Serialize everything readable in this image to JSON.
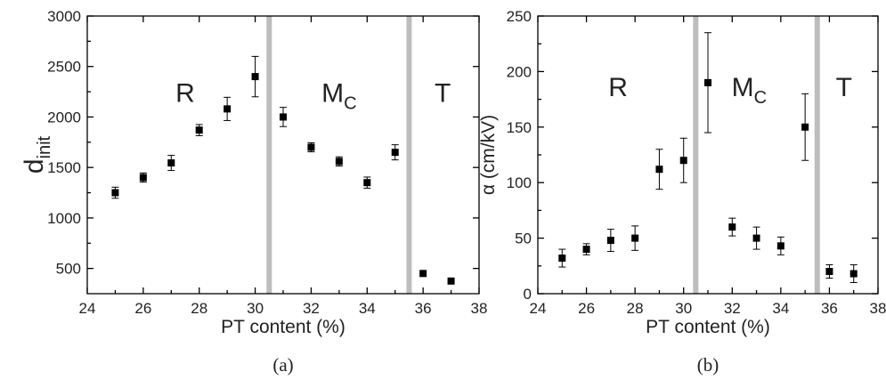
{
  "chart_data": [
    {
      "type": "scatter",
      "xlabel": "PT content (%)",
      "ylabel": "d",
      "ylabel_sub": "init",
      "xlim": [
        24,
        38
      ],
      "ylim": [
        250,
        3000
      ],
      "xticks": [
        24,
        26,
        28,
        30,
        32,
        34,
        36,
        38
      ],
      "yticks": [
        500,
        1000,
        1500,
        2000,
        2500,
        3000
      ],
      "boundaries": [
        30.5,
        35.5
      ],
      "regions": [
        {
          "label": "R",
          "sub": "",
          "x": 27.5,
          "y": 2150
        },
        {
          "label": "M",
          "sub": "C",
          "x": 33.0,
          "y": 2150
        },
        {
          "label": "T",
          "sub": "",
          "x": 36.7,
          "y": 2150
        }
      ],
      "points": [
        {
          "x": 25,
          "y": 1250,
          "err": 55
        },
        {
          "x": 26,
          "y": 1400,
          "err": 45
        },
        {
          "x": 27,
          "y": 1545,
          "err": 75
        },
        {
          "x": 28,
          "y": 1870,
          "err": 55
        },
        {
          "x": 29,
          "y": 2080,
          "err": 115
        },
        {
          "x": 30,
          "y": 2400,
          "err": 200
        },
        {
          "x": 31,
          "y": 2000,
          "err": 95
        },
        {
          "x": 32,
          "y": 1700,
          "err": 45
        },
        {
          "x": 33,
          "y": 1560,
          "err": 45
        },
        {
          "x": 34,
          "y": 1350,
          "err": 55
        },
        {
          "x": 35,
          "y": 1650,
          "err": 75
        },
        {
          "x": 36,
          "y": 450,
          "err": 0
        },
        {
          "x": 37,
          "y": 375,
          "err": 0
        }
      ],
      "caption": "(a)"
    },
    {
      "type": "scatter",
      "xlabel": "PT content (%)",
      "ylabel": "α (cm/kV)",
      "ylabel_sub": "",
      "xlim": [
        24,
        38
      ],
      "ylim": [
        0,
        250
      ],
      "xticks": [
        24,
        26,
        28,
        30,
        32,
        34,
        36,
        38
      ],
      "yticks": [
        0,
        50,
        100,
        150,
        200,
        250
      ],
      "boundaries": [
        30.5,
        35.5
      ],
      "regions": [
        {
          "label": "R",
          "sub": "",
          "x": 27.3,
          "y": 178
        },
        {
          "label": "M",
          "sub": "C",
          "x": 32.7,
          "y": 178
        },
        {
          "label": "T",
          "sub": "",
          "x": 36.6,
          "y": 178
        }
      ],
      "points": [
        {
          "x": 25,
          "y": 32,
          "err": 8
        },
        {
          "x": 26,
          "y": 40,
          "err": 5
        },
        {
          "x": 27,
          "y": 48,
          "err": 10
        },
        {
          "x": 28,
          "y": 50,
          "err": 11
        },
        {
          "x": 29,
          "y": 112,
          "err": 18
        },
        {
          "x": 30,
          "y": 120,
          "err": 20
        },
        {
          "x": 31,
          "y": 190,
          "err": 45
        },
        {
          "x": 32,
          "y": 60,
          "err": 8
        },
        {
          "x": 33,
          "y": 50,
          "err": 10
        },
        {
          "x": 34,
          "y": 43,
          "err": 8
        },
        {
          "x": 35,
          "y": 150,
          "err": 30
        },
        {
          "x": 36,
          "y": 20,
          "err": 6
        },
        {
          "x": 37,
          "y": 18,
          "err": 8
        }
      ],
      "caption": "(b)"
    }
  ]
}
